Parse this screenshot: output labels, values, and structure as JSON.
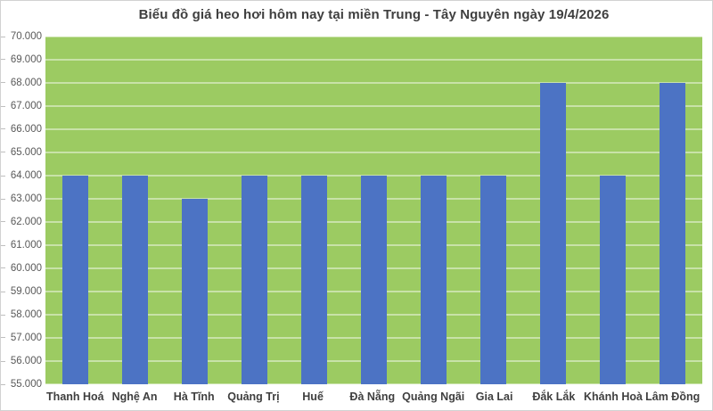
{
  "chart_data": {
    "type": "bar",
    "title": "Biểu đồ giá heo hơi hôm nay tại miền Trung - Tây Nguyên ngày 19/4/2026",
    "categories": [
      "Thanh Hoá",
      "Nghệ An",
      "Hà Tĩnh",
      "Quảng Trị",
      "Huế",
      "Đà Nẵng",
      "Quảng Ngãi",
      "Gia Lai",
      "Đắk Lắk",
      "Khánh Hoà",
      "Lâm Đồng"
    ],
    "values": [
      64000,
      64000,
      63000,
      64000,
      64000,
      64000,
      64000,
      64000,
      68000,
      64000,
      68000
    ],
    "xlabel": "",
    "ylabel": "",
    "ylim": [
      55000,
      70000
    ],
    "ytick_step": 1000,
    "ytick_labels_top_to_bottom": [
      "70.000",
      "69.000",
      "68.000",
      "67.000",
      "66.000",
      "65.000",
      "64.000",
      "63.000",
      "62.000",
      "61.000",
      "60.000",
      "59.000",
      "58.000",
      "57.000",
      "56.000",
      "55.000"
    ],
    "grid": true,
    "legend": "none"
  },
  "colors": {
    "plot_background": "#9ccb62",
    "bar_fill": "#4c73c4",
    "gridline": "rgba(255,255,255,0.45)",
    "title_text": "#3f3f3f",
    "y_label_text": "#595959",
    "x_label_text": "#3f3f3f",
    "frame_border": "#d2d2d2"
  }
}
